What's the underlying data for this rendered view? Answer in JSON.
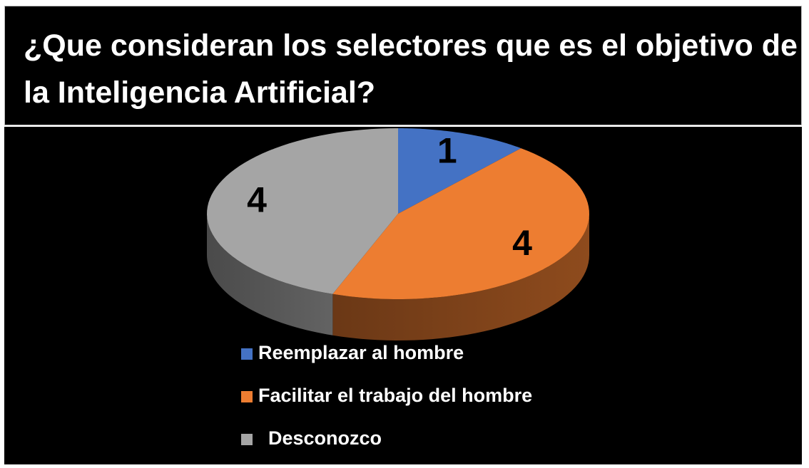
{
  "chart_data": {
    "type": "pie",
    "title": "¿Que consideran los selectores que es el objetivo de la Inteligencia Artificial?",
    "categories": [
      "Reemplazar al hombre",
      "Facilitar el trabajo del hombre",
      "Desconozco"
    ],
    "values": [
      1,
      4,
      4
    ],
    "colors": [
      "#4472c4",
      "#ed7d31",
      "#a5a5a5"
    ],
    "legend": "bottom"
  }
}
